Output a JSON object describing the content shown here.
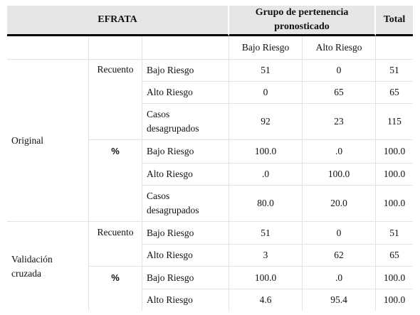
{
  "header": {
    "col1": "EFRATA",
    "col2": "Grupo de pertenencia pronosticado",
    "col3": "Total"
  },
  "subheader": {
    "bajo": "Bajo Riesgo",
    "alto": "Alto Riesgo"
  },
  "groups": {
    "original": "Original",
    "validacion": "Validación cruzada"
  },
  "measures": {
    "recuento": "Recuento",
    "pct": "%"
  },
  "rows": [
    {
      "label": "Bajo Riesgo",
      "bajo": "51",
      "alto": "0",
      "total": "51"
    },
    {
      "label": "Alto Riesgo",
      "bajo": "0",
      "alto": "65",
      "total": "65"
    },
    {
      "label": "Casos desagrupados",
      "bajo": "92",
      "alto": "23",
      "total": "115"
    },
    {
      "label": "Bajo Riesgo",
      "bajo": "100.0",
      "alto": ".0",
      "total": "100.0"
    },
    {
      "label": "Alto Riesgo",
      "bajo": ".0",
      "alto": "100.0",
      "total": "100.0"
    },
    {
      "label": "Casos desagrupados",
      "bajo": "80.0",
      "alto": "20.0",
      "total": "100.0"
    },
    {
      "label": "Bajo Riesgo",
      "bajo": "51",
      "alto": "0",
      "total": "51"
    },
    {
      "label": "Alto Riesgo",
      "bajo": "3",
      "alto": "62",
      "total": "65"
    },
    {
      "label": "Bajo Riesgo",
      "bajo": "100.0",
      "alto": ".0",
      "total": "100.0"
    },
    {
      "label": "Alto Riesgo",
      "bajo": "4.6",
      "alto": "95.4",
      "total": "100.0"
    }
  ]
}
